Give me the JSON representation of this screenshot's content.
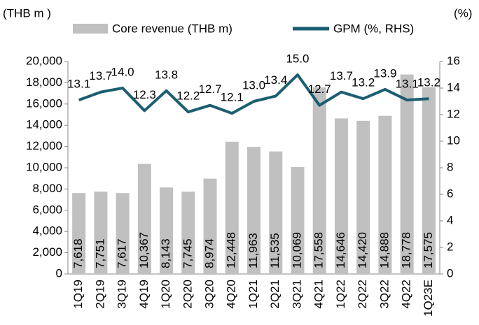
{
  "chart_data": {
    "type": "bar_line",
    "y_label": "(THB m )",
    "y2_label": "(%)",
    "categories": [
      "1Q19",
      "2Q19",
      "3Q19",
      "4Q19",
      "1Q20",
      "2Q20",
      "3Q20",
      "4Q20",
      "1Q21",
      "2Q21",
      "3Q21",
      "4Q21",
      "1Q22",
      "2Q22",
      "3Q22",
      "4Q22",
      "1Q23E"
    ],
    "series": [
      {
        "name": "Core revenue (THB m)",
        "color": "#c0c0c0",
        "type": "bar",
        "values": [
          7618,
          7751,
          7617,
          10367,
          8143,
          7745,
          8974,
          12448,
          11963,
          11535,
          10069,
          17558,
          14646,
          14420,
          14888,
          18778,
          17575
        ],
        "value_labels": [
          "7,618",
          "7,751",
          "7,617",
          "10,367",
          "8,143",
          "7,745",
          "8,974",
          "12,448",
          "11,963",
          "11,535",
          "10,069",
          "17,558",
          "14,646",
          "14,420",
          "14,888",
          "18,778",
          "17,575"
        ]
      },
      {
        "name": "GPM (%, RHS)",
        "color": "#1b5e72",
        "type": "line",
        "axis": "y2",
        "values": [
          13.1,
          13.7,
          14.0,
          12.3,
          13.8,
          12.2,
          12.7,
          12.1,
          13.0,
          13.4,
          15.0,
          12.7,
          13.7,
          13.2,
          13.9,
          13.1,
          13.2
        ],
        "value_labels": [
          "13.1",
          "13.7",
          "14.0",
          "12.3",
          "13.8",
          "12.2",
          "12.7",
          "12.1",
          "13.0",
          "13.4",
          "15.0",
          "12.7",
          "13.7",
          "13.2",
          "13.9",
          "13.1",
          "13.2"
        ]
      }
    ],
    "ylim": [
      0,
      20000
    ],
    "yticks": [
      0,
      {
        "value": 2000,
        "label": "2,000"
      },
      {
        "value": 4000,
        "label": "4,000"
      },
      {
        "value": 6000,
        "label": "6,000"
      },
      {
        "value": 8000,
        "label": "8,000"
      },
      {
        "value": 10000,
        "label": "10,000"
      },
      {
        "value": 12000,
        "label": "12,000"
      },
      {
        "value": 14000,
        "label": "14,000"
      },
      {
        "value": 16000,
        "label": "16,000"
      },
      {
        "value": 18000,
        "label": "18,000"
      },
      {
        "value": 20000,
        "label": "20,000"
      }
    ],
    "y2lim": [
      0,
      16
    ],
    "y2ticks": [
      0,
      2,
      4,
      6,
      8,
      10,
      12,
      14,
      16
    ]
  }
}
